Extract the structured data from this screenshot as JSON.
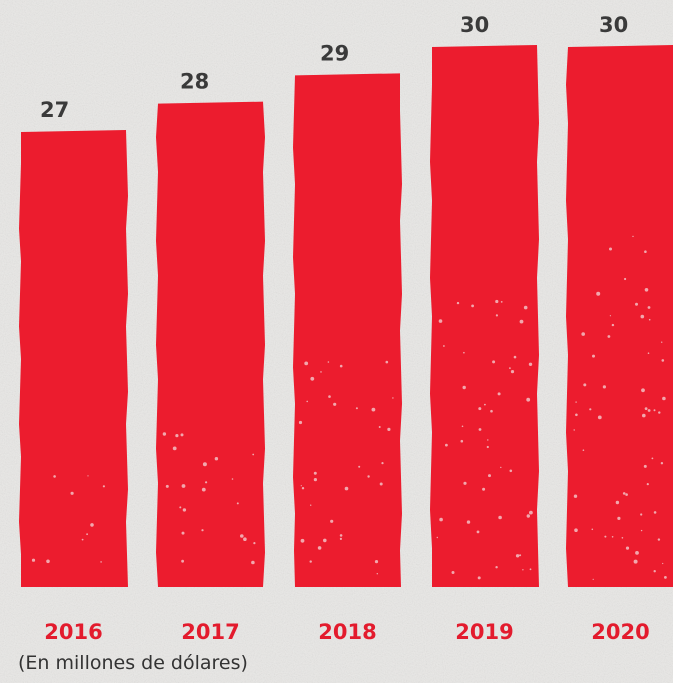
{
  "chart_data": {
    "type": "bar",
    "categories": [
      "2016",
      "2017",
      "2018",
      "2019",
      "2020"
    ],
    "values": [
      27,
      28,
      29,
      30,
      30
    ],
    "value_labels": [
      "27",
      "28",
      "29",
      "30",
      "30"
    ],
    "unit_note": "(En millones de dólares)",
    "title": "",
    "xlabel": "",
    "ylabel": "",
    "ylim": [
      0,
      30
    ],
    "grid": false,
    "legend": "none"
  },
  "colors": {
    "bar": "#ec1c2e",
    "category_label": "#e31b2d",
    "value_label": "#3a3a3a",
    "background": "#e9e8e6"
  }
}
